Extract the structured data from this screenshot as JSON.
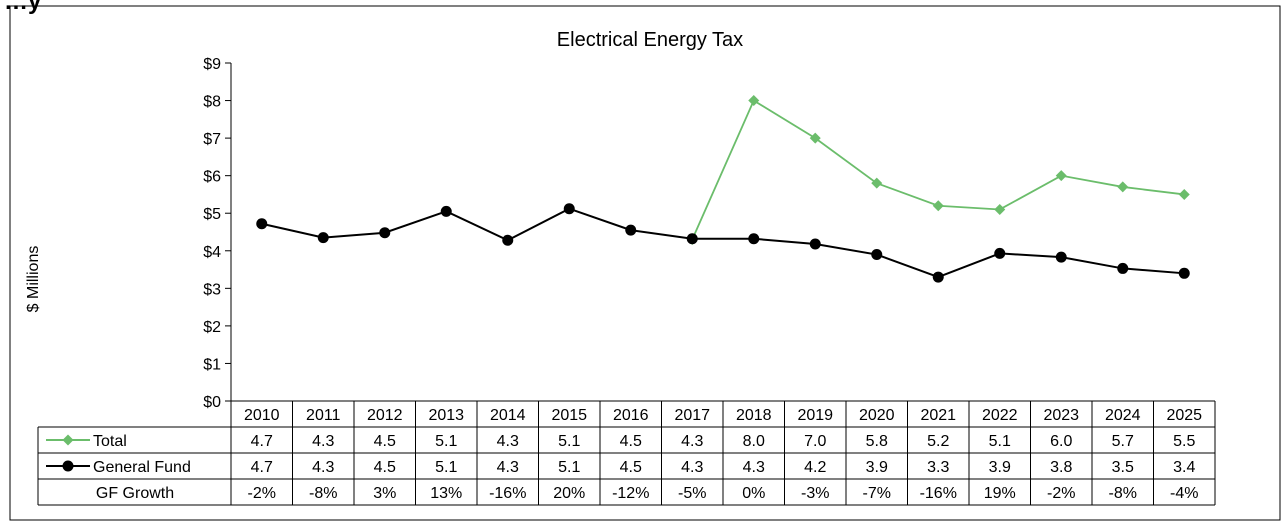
{
  "page": {
    "partial_header": "…y"
  },
  "chart_data": {
    "type": "line",
    "title": "Electrical Energy Tax",
    "ylabel": "$ Millions",
    "xlabel": "",
    "ylim": [
      0,
      9
    ],
    "y_ticks": [
      "$0",
      "$1",
      "$2",
      "$3",
      "$4",
      "$5",
      "$6",
      "$7",
      "$8",
      "$9"
    ],
    "grid": false,
    "categories": [
      "2010",
      "2011",
      "2012",
      "2013",
      "2014",
      "2015",
      "2016",
      "2017",
      "2018",
      "2019",
      "2020",
      "2021",
      "2022",
      "2023",
      "2024",
      "2025"
    ],
    "series": [
      {
        "name": "Total",
        "color": "#6bbd6b",
        "marker": "diamond",
        "plotted_from_index": 7,
        "values": [
          4.7,
          4.3,
          4.5,
          5.1,
          4.3,
          5.1,
          4.5,
          4.3,
          8.0,
          7.0,
          5.8,
          5.2,
          5.1,
          6.0,
          5.7,
          5.5
        ],
        "labels": [
          "4.7",
          "4.3",
          "4.5",
          "5.1",
          "4.3",
          "5.1",
          "4.5",
          "4.3",
          "8.0",
          "7.0",
          "5.8",
          "5.2",
          "5.1",
          "6.0",
          "5.7",
          "5.5"
        ]
      },
      {
        "name": "General Fund",
        "color": "#000000",
        "marker": "circle",
        "plotted_from_index": 0,
        "values": [
          4.72,
          4.35,
          4.48,
          5.05,
          4.28,
          5.12,
          4.55,
          4.32,
          4.32,
          4.18,
          3.9,
          3.3,
          3.93,
          3.83,
          3.53,
          3.4
        ],
        "labels": [
          "4.7",
          "4.3",
          "4.5",
          "5.1",
          "4.3",
          "5.1",
          "4.5",
          "4.3",
          "4.3",
          "4.2",
          "3.9",
          "3.3",
          "3.9",
          "3.8",
          "3.5",
          "3.4"
        ]
      }
    ],
    "table_rows": [
      {
        "name": "GF Growth",
        "values": [
          "-2%",
          "-8%",
          "3%",
          "13%",
          "-16%",
          "20%",
          "-12%",
          "-5%",
          "0%",
          "-3%",
          "-7%",
          "-16%",
          "19%",
          "-2%",
          "-8%",
          "-4%"
        ]
      }
    ]
  }
}
